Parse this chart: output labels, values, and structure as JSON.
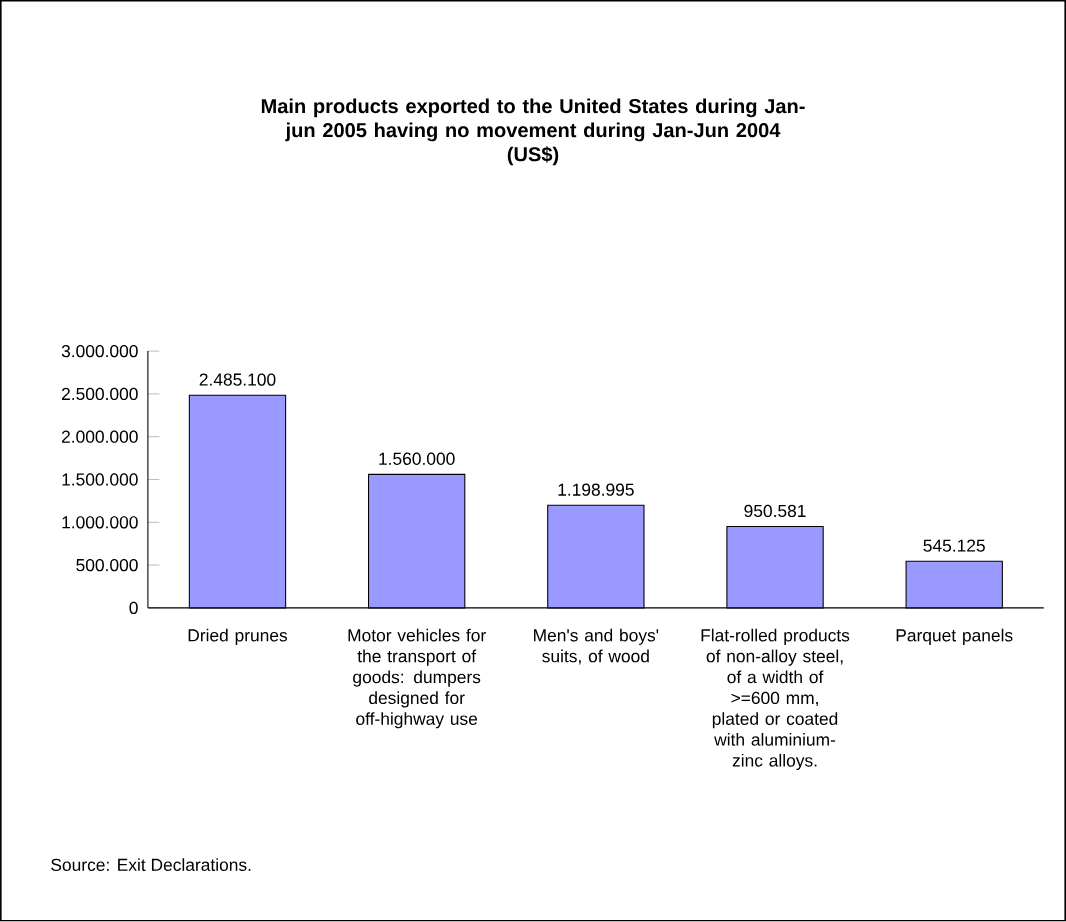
{
  "chart_data": {
    "type": "bar",
    "title": "Main products exported to the United States during Jan-jun 2005 having no movement during Jan-Jun 2004",
    "subtitle": "(US$)",
    "categories": [
      "Dried prunes",
      "Motor vehicles for the transport of goods: dumpers designed for off-highway use",
      "Men's and boys' suits, of wood",
      "Flat-rolled products of non-alloy steel, of a width of >=600 mm, plated or coated with aluminium-zinc alloys.",
      "Parquet panels"
    ],
    "values": [
      2485100,
      1560000,
      1198995,
      950581,
      545125
    ],
    "value_labels": [
      "2.485.100",
      "1.560.000",
      "1.198.995",
      "950.581",
      "545.125"
    ],
    "color": "#9999ff",
    "ylim": [
      0,
      3000000
    ],
    "yticks": [
      {
        "value": 0,
        "label": "0"
      },
      {
        "value": 500000,
        "label": "500.000"
      },
      {
        "value": 1000000,
        "label": "1.000.000"
      },
      {
        "value": 1500000,
        "label": "1.500.000"
      },
      {
        "value": 2000000,
        "label": "2.000.000"
      },
      {
        "value": 2500000,
        "label": "2.500.000"
      },
      {
        "value": 3000000,
        "label": "3.000.000"
      }
    ],
    "annotations": [
      "Source: Exit Declarations."
    ]
  }
}
